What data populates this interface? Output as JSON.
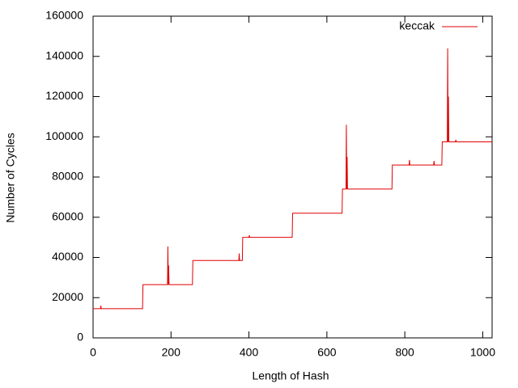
{
  "chart_data": {
    "type": "line",
    "xlabel": "Length of Hash",
    "ylabel": "Number of Cycles",
    "xlim": [
      0,
      1024
    ],
    "ylim": [
      0,
      160000
    ],
    "xticks": [
      0,
      200,
      400,
      600,
      800,
      1000
    ],
    "yticks": [
      0,
      20000,
      40000,
      60000,
      80000,
      100000,
      120000,
      140000,
      160000
    ],
    "legend": "upper right",
    "x": [
      0,
      19,
      20,
      21,
      127,
      128,
      191,
      192,
      193,
      194,
      195,
      255,
      256,
      374,
      375,
      376,
      383,
      384,
      400,
      401,
      402,
      511,
      512,
      639,
      640,
      649,
      650,
      651,
      652,
      653,
      767,
      768,
      811,
      812,
      813,
      874,
      875,
      876,
      895,
      896,
      909,
      910,
      911,
      912,
      913,
      930,
      931,
      932,
      1024
    ],
    "series": [
      {
        "name": "keccak",
        "color": "#e00000",
        "values": [
          14500,
          14500,
          16000,
          14500,
          14500,
          26500,
          26500,
          45500,
          26500,
          36000,
          26500,
          26500,
          38500,
          38500,
          42000,
          38500,
          38500,
          50000,
          50000,
          51000,
          50000,
          50000,
          62000,
          62000,
          74000,
          74000,
          106000,
          74000,
          90000,
          74000,
          74000,
          86000,
          86000,
          88500,
          86000,
          86000,
          88000,
          86000,
          86000,
          97500,
          97500,
          144000,
          97500,
          120000,
          97500,
          97500,
          98500,
          97500,
          97500
        ]
      }
    ]
  }
}
